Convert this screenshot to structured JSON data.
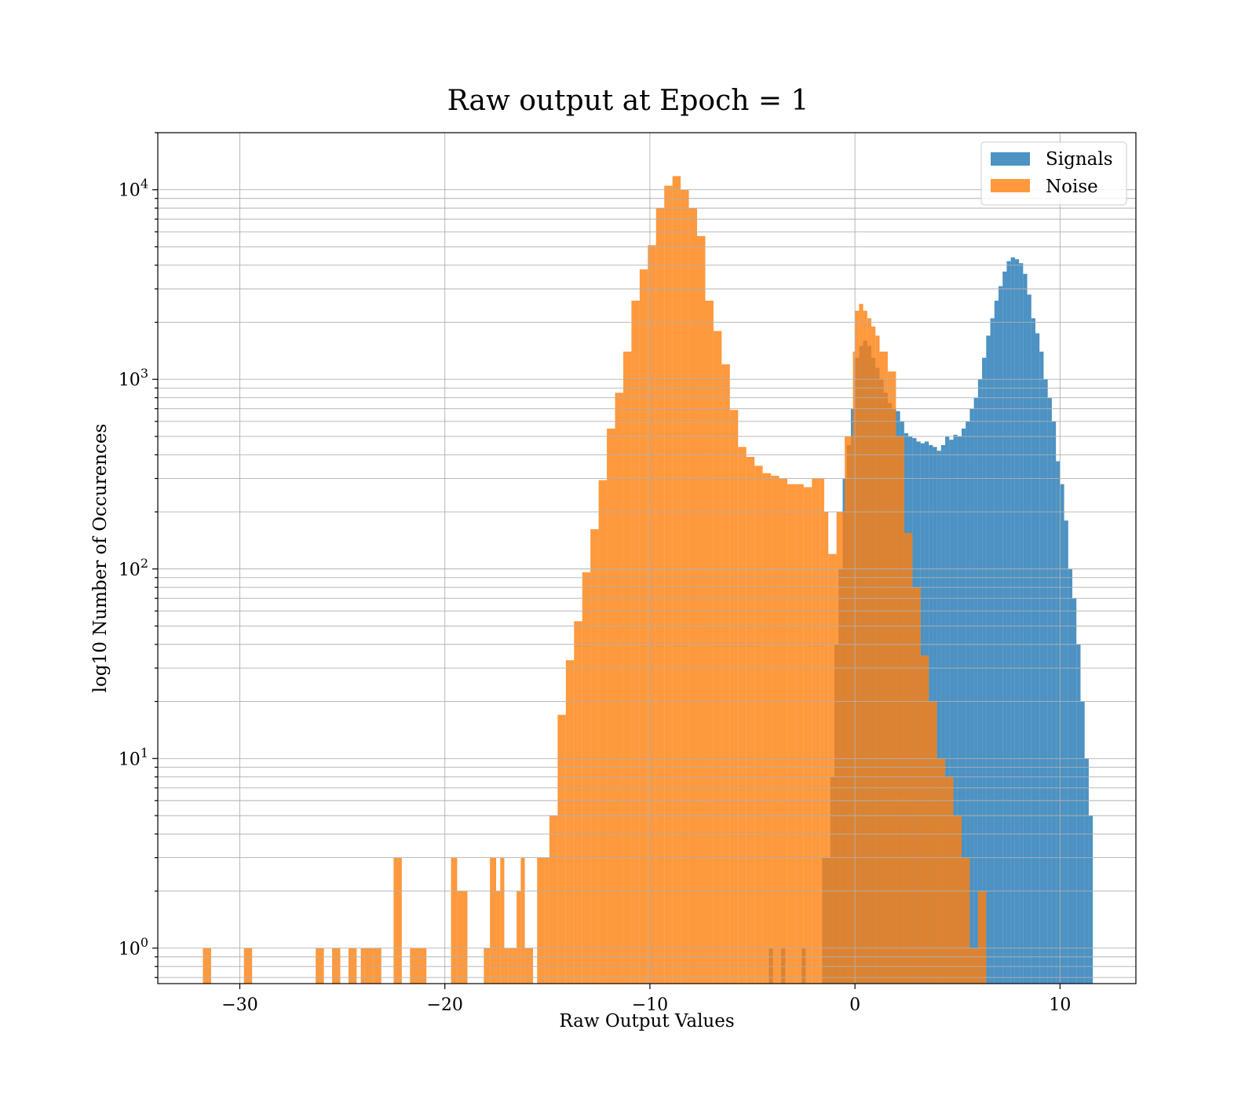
{
  "chart_data": {
    "type": "bar",
    "title": "Raw output at Epoch = 1",
    "xlabel": "Raw Output Values",
    "ylabel": "log10 Number of Occurences",
    "xlim": [
      -34,
      13.7
    ],
    "ylim": [
      0.65,
      20000
    ],
    "yscale": "log",
    "grid": true,
    "legend_position": "top-right",
    "x_ticks": [
      -30,
      -20,
      -10,
      0,
      10
    ],
    "x_tick_labels": [
      "−30",
      "−20",
      "−10",
      "0",
      "10"
    ],
    "y_ticks": [
      1,
      10,
      100,
      1000,
      10000
    ],
    "y_tick_base": "10",
    "y_tick_exponents": [
      "0",
      "1",
      "2",
      "3",
      "4"
    ],
    "legend": {
      "signals": "Signals",
      "noise": "Noise"
    },
    "colors": {
      "signals": "#1f77b4",
      "noise": "#ff7f0e"
    },
    "series": [
      {
        "name": "Signals",
        "color": "#1f77b4",
        "alpha": 0.8,
        "bin_edges": [
          -4.2,
          -4.0,
          -3.6,
          -3.4,
          -2.6,
          -2.4,
          -1.6,
          -1.4,
          -1.2,
          -1.0,
          -0.8,
          -0.6,
          -0.4,
          -0.2,
          0.0,
          0.2,
          0.4,
          0.6,
          0.8,
          1.0,
          1.2,
          1.4,
          1.6,
          1.8,
          2.0,
          2.2,
          2.4,
          2.6,
          2.8,
          3.0,
          3.2,
          3.4,
          3.6,
          3.8,
          4.0,
          4.2,
          4.4,
          4.6,
          4.8,
          5.0,
          5.2,
          5.4,
          5.6,
          5.8,
          6.0,
          6.2,
          6.4,
          6.6,
          6.8,
          7.0,
          7.2,
          7.4,
          7.6,
          7.8,
          8.0,
          8.2,
          8.4,
          8.6,
          8.8,
          9.0,
          9.2,
          9.4,
          9.6,
          9.8,
          10.0,
          10.2,
          10.4,
          10.6,
          10.8,
          11.0,
          11.2,
          11.4,
          11.6
        ],
        "counts": [
          1,
          0,
          1,
          0,
          1,
          0,
          3,
          3,
          8,
          40,
          100,
          300,
          450,
          700,
          1300,
          1500,
          1600,
          1500,
          1300,
          1150,
          1000,
          850,
          750,
          700,
          680,
          600,
          520,
          500,
          490,
          470,
          460,
          470,
          450,
          440,
          420,
          450,
          500,
          480,
          510,
          500,
          550,
          600,
          700,
          800,
          1000,
          1300,
          1700,
          2100,
          2600,
          3100,
          3700,
          4200,
          4400,
          4300,
          4100,
          3600,
          2800,
          2100,
          1750,
          1400,
          1000,
          800,
          600,
          370,
          280,
          180,
          100,
          70,
          40,
          20,
          10,
          5
        ]
      },
      {
        "name": "Noise",
        "color": "#ff7f0e",
        "alpha": 0.8,
        "bin_edges": [
          -31.8,
          -31.4,
          -29.8,
          -29.4,
          -26.3,
          -25.9,
          -25.5,
          -25.1,
          -24.7,
          -24.3,
          -24.1,
          -23.9,
          -23.5,
          -23.1,
          -22.9,
          -22.5,
          -22.1,
          -21.9,
          -21.7,
          -21.1,
          -20.9,
          -19.7,
          -19.4,
          -19.3,
          -18.9,
          -18.1,
          -17.8,
          -17.5,
          -17.3,
          -17.1,
          -16.9,
          -16.7,
          -16.5,
          -16.3,
          -16.1,
          -15.7,
          -15.5,
          -15.1,
          -14.9,
          -14.5,
          -14.1,
          -13.7,
          -13.3,
          -12.9,
          -12.5,
          -12.1,
          -11.7,
          -11.3,
          -10.9,
          -10.5,
          -10.1,
          -9.7,
          -9.3,
          -8.9,
          -8.5,
          -8.1,
          -7.7,
          -7.3,
          -6.9,
          -6.5,
          -6.1,
          -5.7,
          -5.3,
          -4.9,
          -4.5,
          -4.1,
          -3.7,
          -3.3,
          -2.9,
          -2.5,
          -2.1,
          -1.7,
          -1.5,
          -1.3,
          -0.9,
          -0.5,
          -0.1,
          0.0,
          0.2,
          0.4,
          0.6,
          0.8,
          1.0,
          1.2,
          1.6,
          2.0,
          2.4,
          2.8,
          3.2,
          3.6,
          4.0,
          4.4,
          4.8,
          5.2,
          5.6,
          6.0,
          6.4,
          6.8,
          7.2,
          7.6
        ],
        "counts": [
          1,
          0,
          1,
          0,
          1,
          0,
          1,
          0,
          1,
          0,
          1,
          1,
          1,
          0,
          0,
          3,
          0,
          0,
          1,
          1,
          0,
          3,
          2,
          2,
          0,
          1,
          3,
          2,
          3,
          1,
          1,
          1,
          2,
          3,
          1,
          0,
          3,
          3,
          5,
          17,
          33,
          53,
          96,
          162,
          294,
          550,
          850,
          1400,
          2600,
          3800,
          5100,
          8000,
          10500,
          11800,
          10000,
          8000,
          5700,
          2600,
          1800,
          1200,
          690,
          440,
          390,
          350,
          320,
          310,
          300,
          280,
          280,
          270,
          300,
          300,
          200,
          120,
          200,
          500,
          1400,
          2300,
          2500,
          2300,
          2100,
          1900,
          1700,
          1400,
          1100,
          500,
          155,
          80,
          35,
          20,
          10,
          8,
          5,
          3,
          1,
          2,
          0,
          0,
          0
        ]
      }
    ]
  }
}
